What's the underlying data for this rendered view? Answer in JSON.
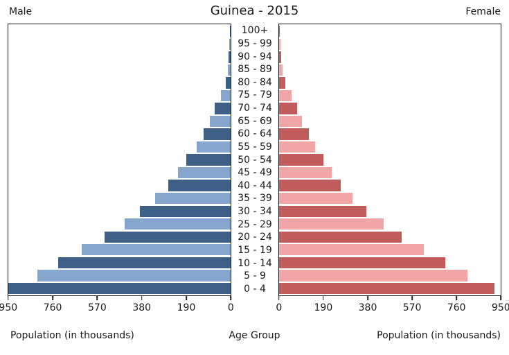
{
  "header": {
    "left_label": "Male",
    "title": "Guinea - 2015",
    "right_label": "Female"
  },
  "footer": {
    "left_caption": "Population (in thousands)",
    "center_caption": "Age Group",
    "right_caption": "Population (in thousands)"
  },
  "colors": {
    "male_dark": "#3E6087",
    "male_light": "#87A6CE",
    "female_dark": "#C05C5C",
    "female_light": "#F0A6A6",
    "axis": "#1c1c1c"
  },
  "chart_data": {
    "type": "bar",
    "subtype": "population-pyramid",
    "title": "Guinea - 2015",
    "units": "thousands",
    "xlabel": "Population (in thousands)",
    "center_label": "Age Group",
    "xlim": [
      0,
      950
    ],
    "x_ticks": [
      0,
      190,
      380,
      570,
      760,
      950
    ],
    "tick_labels_left_to_right_male": [
      "950",
      "760",
      "570",
      "380",
      "190",
      "0"
    ],
    "tick_labels_left_to_right_female": [
      "0",
      "190",
      "380",
      "570",
      "760",
      "950"
    ],
    "categories_top_down": [
      "100+",
      "95 - 99",
      "90 - 94",
      "85 - 89",
      "80 - 84",
      "75 - 79",
      "70 - 74",
      "65 - 69",
      "60 - 64",
      "55 - 59",
      "50 - 54",
      "45 - 49",
      "40 - 44",
      "35 - 39",
      "30 - 34",
      "25 - 29",
      "20 - 24",
      "15 - 19",
      "10 - 14",
      "5 - 9",
      "0 - 4"
    ],
    "series": [
      {
        "name": "Male",
        "side": "left",
        "values": [
          2,
          5,
          8,
          13,
          22,
          42,
          68,
          90,
          114,
          146,
          188,
          224,
          266,
          324,
          388,
          454,
          538,
          636,
          736,
          827,
          955
        ]
      },
      {
        "name": "Female",
        "side": "right",
        "values": [
          2,
          5,
          9,
          15,
          27,
          52,
          76,
          98,
          127,
          154,
          189,
          227,
          264,
          315,
          373,
          447,
          526,
          620,
          712,
          808,
          923
        ]
      }
    ],
    "legend": "none",
    "grid": false,
    "bar_color_rule": "alternating dark/light per age row; 0-4 dark"
  }
}
